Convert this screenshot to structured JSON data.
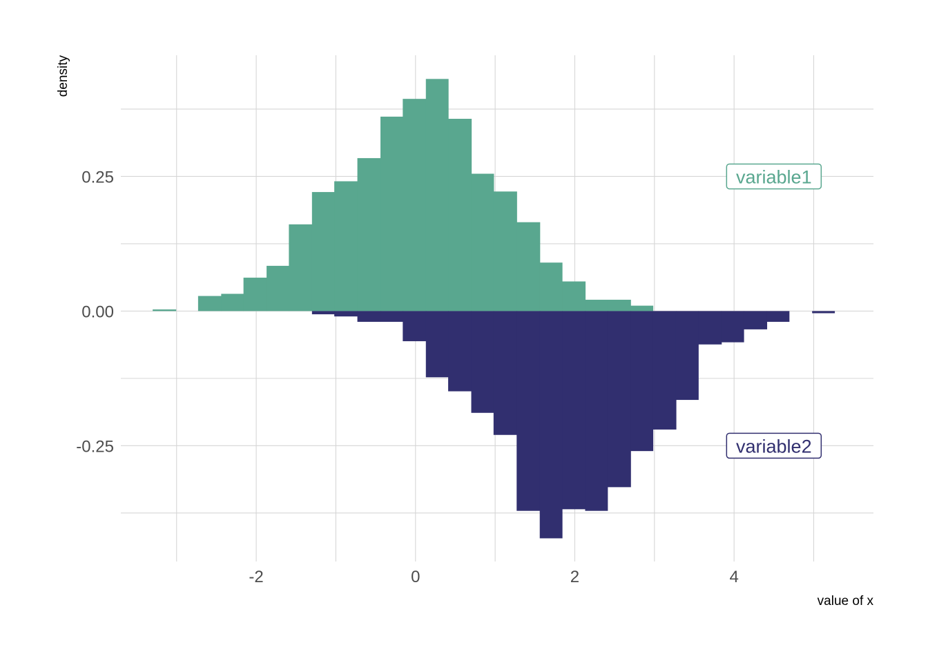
{
  "chart_data": {
    "type": "bar",
    "subtype": "mirrored histogram",
    "xlabel": "value of x",
    "ylabel": "density",
    "xlim": [
      -3.7,
      5.75
    ],
    "ylim": [
      -0.465,
      0.475
    ],
    "x_ticks": [
      {
        "value": -2,
        "label": "-2"
      },
      {
        "value": 0,
        "label": "0"
      },
      {
        "value": 2,
        "label": "2"
      },
      {
        "value": 4,
        "label": "4"
      }
    ],
    "x_minor_grid": [
      -3,
      -1,
      1,
      3,
      5
    ],
    "y_ticks": [
      {
        "value": 0.25,
        "label": "0.25"
      },
      {
        "value": 0.0,
        "label": "0.00"
      },
      {
        "value": -0.25,
        "label": "-0.25"
      }
    ],
    "y_minor_grid": [
      0.375,
      0.125,
      -0.125,
      -0.375
    ],
    "grid": true,
    "bin_edges": [
      -3.3,
      -3.01,
      -2.73,
      -2.44,
      -2.16,
      -1.87,
      -1.59,
      -1.3,
      -1.02,
      -0.73,
      -0.44,
      -0.16,
      0.13,
      0.41,
      0.7,
      0.98,
      1.27,
      1.56,
      1.84,
      2.13,
      2.41,
      2.7,
      2.98,
      3.27,
      3.55,
      3.84,
      4.12,
      4.41,
      4.69,
      4.98,
      5.26
    ],
    "series": [
      {
        "name": "variable1",
        "color": "#59a78f",
        "values": [
          0.003,
          0,
          0.028,
          0.032,
          0.062,
          0.084,
          0.161,
          0.221,
          0.241,
          0.284,
          0.361,
          0.394,
          0.431,
          0.357,
          0.255,
          0.222,
          0.165,
          0.09,
          0.055,
          0.021,
          0.021,
          0.01,
          0,
          0,
          0,
          0,
          0,
          0,
          0,
          0
        ]
      },
      {
        "name": "variable2",
        "color": "#312f6f",
        "values": [
          0,
          0,
          0,
          0,
          0,
          0,
          0,
          -0.006,
          -0.01,
          -0.02,
          -0.02,
          -0.056,
          -0.123,
          -0.149,
          -0.189,
          -0.23,
          -0.371,
          -0.422,
          -0.368,
          -0.371,
          -0.327,
          -0.26,
          -0.22,
          -0.165,
          -0.062,
          -0.058,
          -0.034,
          -0.02,
          0,
          -0.004
        ]
      }
    ],
    "annotations": [
      {
        "text": "variable1",
        "x": 4.5,
        "y": 0.25,
        "color": "#59a78f"
      },
      {
        "text": "variable2",
        "x": 4.5,
        "y": -0.25,
        "color": "#312f6f"
      }
    ]
  }
}
